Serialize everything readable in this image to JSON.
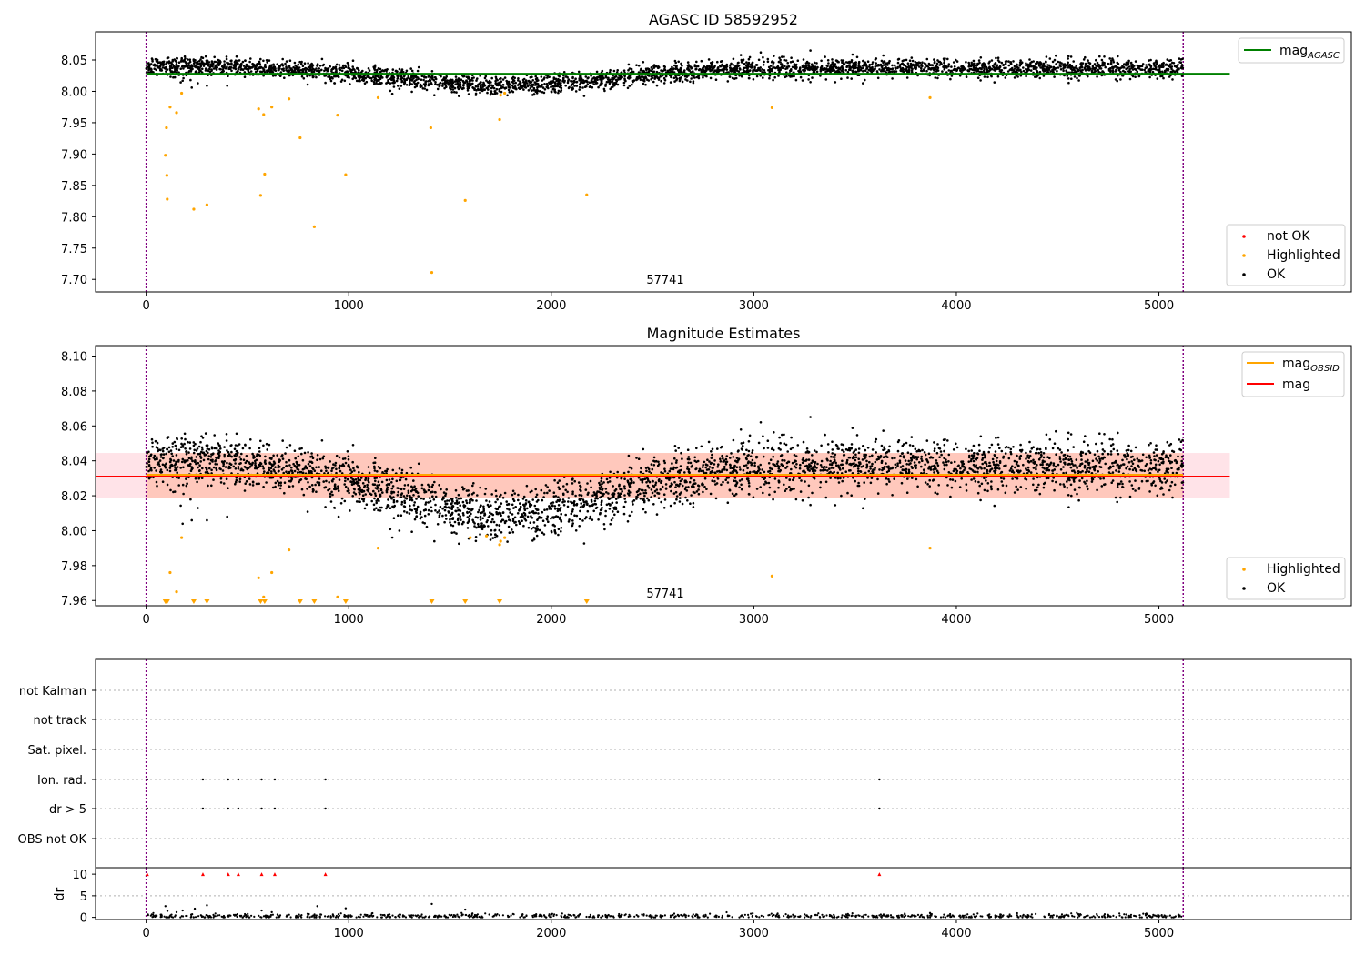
{
  "colors": {
    "ok": "#000000",
    "highlighted": "#ffa500",
    "not_ok": "#ff0000",
    "agasc_line": "#008000",
    "obsid_line": "#ffa500",
    "mag_line": "#ff0000",
    "band_pink": "#ffc0cb",
    "band_orange": "#ffa07a",
    "vline": "#800080",
    "grid": "#b0b0b0"
  },
  "chart_data": [
    {
      "id": "top",
      "type": "scatter",
      "title": "AGASC ID 58592952",
      "annotation": "57741",
      "xlim": [
        -250,
        5950
      ],
      "ylim": [
        7.68,
        8.095
      ],
      "x_ticks": [
        0,
        1000,
        2000,
        3000,
        4000,
        5000
      ],
      "y_ticks": [
        7.7,
        7.75,
        7.8,
        7.85,
        7.9,
        7.95,
        8.0,
        8.05
      ],
      "y_tick_labels": [
        "7.70",
        "7.75",
        "7.80",
        "7.85",
        "7.90",
        "7.95",
        "8.00",
        "8.05"
      ],
      "vlines": [
        0,
        5120
      ],
      "hlines": [
        {
          "series": "mag_agasc",
          "y": 8.028,
          "x": [
            0,
            5350
          ]
        }
      ],
      "legends": [
        {
          "position": "top-right",
          "entries": [
            {
              "label": "mag",
              "subscript": "AGASC",
              "marker": "line",
              "color_key": "agasc_line"
            }
          ]
        },
        {
          "position": "bottom-right",
          "entries": [
            {
              "label": "not OK",
              "marker": "dot",
              "color_key": "not_ok"
            },
            {
              "label": "Highlighted",
              "marker": "dot",
              "color_key": "highlighted"
            },
            {
              "label": "OK",
              "marker": "dot",
              "color_key": "ok"
            }
          ]
        }
      ],
      "highlighted": [
        [
          95,
          7.898
        ],
        [
          100,
          7.942
        ],
        [
          102,
          7.866
        ],
        [
          104,
          7.828
        ],
        [
          118,
          7.975
        ],
        [
          150,
          7.966
        ],
        [
          175,
          7.997
        ],
        [
          235,
          7.812
        ],
        [
          300,
          7.819
        ],
        [
          555,
          7.972
        ],
        [
          565,
          7.834
        ],
        [
          580,
          7.963
        ],
        [
          585,
          7.868
        ],
        [
          620,
          7.975
        ],
        [
          705,
          7.988
        ],
        [
          760,
          7.926
        ],
        [
          830,
          7.784
        ],
        [
          945,
          7.962
        ],
        [
          985,
          7.867
        ],
        [
          1145,
          7.99
        ],
        [
          1405,
          7.942
        ],
        [
          1410,
          7.711
        ],
        [
          1575,
          7.826
        ],
        [
          1745,
          7.955
        ],
        [
          1750,
          7.994
        ],
        [
          1770,
          7.997
        ],
        [
          2175,
          7.835
        ],
        [
          3090,
          7.974
        ],
        [
          3870,
          7.99
        ]
      ],
      "ok_outliers": [
        [
          180,
          8.017
        ],
        [
          225,
          8.006
        ],
        [
          255,
          8.013
        ],
        [
          300,
          8.009
        ],
        [
          400,
          8.009
        ],
        [
          1250,
          8.004
        ]
      ],
      "ok_trend": [
        [
          0,
          8.04
        ],
        [
          500,
          8.038
        ],
        [
          900,
          8.033
        ],
        [
          1200,
          8.022
        ],
        [
          1500,
          8.011
        ],
        [
          1700,
          8.008
        ],
        [
          1900,
          8.01
        ],
        [
          2200,
          8.016
        ],
        [
          2500,
          8.028
        ],
        [
          2800,
          8.033
        ],
        [
          3100,
          8.036
        ],
        [
          3600,
          8.038
        ],
        [
          4200,
          8.037
        ],
        [
          5120,
          8.036
        ]
      ],
      "ok_count": 3400,
      "ok_spread": 0.0075
    },
    {
      "id": "middle",
      "type": "scatter",
      "title": "Magnitude Estimates",
      "annotation": "57741",
      "xlim": [
        -250,
        5950
      ],
      "ylim": [
        7.957,
        8.106
      ],
      "x_ticks": [
        0,
        1000,
        2000,
        3000,
        4000,
        5000
      ],
      "y_ticks": [
        7.96,
        7.98,
        8.0,
        8.02,
        8.04,
        8.06,
        8.08,
        8.1
      ],
      "y_tick_labels": [
        "7.96",
        "7.98",
        "8.00",
        "8.02",
        "8.04",
        "8.06",
        "8.08",
        "8.10"
      ],
      "vlines": [
        0,
        5120
      ],
      "bands": [
        {
          "color_key": "band_pink",
          "y": [
            8.0185,
            8.0445
          ],
          "x": [
            -250,
            5350
          ],
          "opacity": 0.45
        },
        {
          "color_key": "band_orange",
          "y": [
            8.0185,
            8.0445
          ],
          "x": [
            0,
            5120
          ],
          "opacity": 0.4
        }
      ],
      "hlines": [
        {
          "series": "mag_obsid",
          "y": 8.032,
          "x": [
            0,
            5120
          ],
          "color_key": "obsid_line"
        },
        {
          "series": "mag",
          "y": 8.031,
          "x": [
            -250,
            5350
          ],
          "color_key": "mag_line"
        }
      ],
      "legends": [
        {
          "position": "top-right",
          "entries": [
            {
              "label": "mag",
              "subscript": "OBSID",
              "marker": "line",
              "color_key": "obsid_line"
            },
            {
              "label": "mag",
              "marker": "line",
              "color_key": "mag_line"
            }
          ]
        },
        {
          "position": "bottom-right",
          "entries": [
            {
              "label": "Highlighted",
              "marker": "dot",
              "color_key": "highlighted"
            },
            {
              "label": "OK",
              "marker": "dot",
              "color_key": "ok"
            }
          ]
        }
      ],
      "highlighted": [
        [
          118,
          7.976
        ],
        [
          150,
          7.965
        ],
        [
          175,
          7.996
        ],
        [
          555,
          7.973
        ],
        [
          580,
          7.962
        ],
        [
          620,
          7.976
        ],
        [
          705,
          7.989
        ],
        [
          945,
          7.962
        ],
        [
          1145,
          7.99
        ],
        [
          1600,
          7.996
        ],
        [
          1680,
          7.997
        ],
        [
          1745,
          7.992
        ],
        [
          1750,
          7.994
        ],
        [
          1770,
          7.996
        ],
        [
          3090,
          7.974
        ],
        [
          3870,
          7.99
        ]
      ],
      "offscale": [
        95,
        100,
        104,
        235,
        300,
        565,
        585,
        760,
        830,
        985,
        1410,
        1575,
        1745,
        2175
      ],
      "ok_outliers": [
        [
          180,
          8.004
        ],
        [
          225,
          8.006
        ],
        [
          255,
          8.013
        ],
        [
          300,
          8.006
        ],
        [
          400,
          8.008
        ],
        [
          1250,
          8.0
        ],
        [
          950,
          8.008
        ]
      ],
      "ok_trend": [
        [
          0,
          8.04
        ],
        [
          500,
          8.038
        ],
        [
          900,
          8.033
        ],
        [
          1200,
          8.022
        ],
        [
          1500,
          8.011
        ],
        [
          1700,
          8.008
        ],
        [
          1900,
          8.01
        ],
        [
          2200,
          8.016
        ],
        [
          2500,
          8.028
        ],
        [
          2800,
          8.033
        ],
        [
          3100,
          8.036
        ],
        [
          3600,
          8.038
        ],
        [
          4200,
          8.037
        ],
        [
          5120,
          8.036
        ]
      ],
      "ok_count": 3400,
      "ok_spread": 0.0075
    },
    {
      "id": "flags",
      "type": "scatter",
      "xlim": [
        -250,
        5950
      ],
      "categories": [
        "not Kalman",
        "not track",
        "Sat. pixel.",
        "Ion. rad.",
        "dr > 5",
        "OBS not OK"
      ],
      "vlines": [
        0,
        5120
      ],
      "series": [
        {
          "name": "Ion. rad.",
          "x": [
            5,
            280,
            405,
            455,
            570,
            635,
            885,
            3620
          ]
        },
        {
          "name": "dr > 5",
          "x": [
            5,
            280,
            405,
            455,
            570,
            635,
            885,
            3620
          ]
        }
      ]
    },
    {
      "id": "dr",
      "type": "scatter",
      "ylabel": "dr",
      "xlim": [
        -250,
        5950
      ],
      "ylim": [
        -0.5,
        11.5
      ],
      "x_ticks": [
        0,
        1000,
        2000,
        3000,
        4000,
        5000
      ],
      "y_ticks": [
        0,
        5,
        10
      ],
      "y_tick_labels": [
        "0",
        "5",
        "10"
      ],
      "vlines": [
        0,
        5120
      ],
      "capped": {
        "y": 10,
        "x": [
          5,
          280,
          405,
          455,
          570,
          635,
          885,
          3620
        ]
      },
      "ok_outliers": [
        [
          95,
          2.6
        ],
        [
          105,
          1.5
        ],
        [
          150,
          1.2
        ],
        [
          180,
          1.6
        ],
        [
          240,
          2.0
        ],
        [
          300,
          2.8
        ],
        [
          570,
          1.6
        ],
        [
          620,
          1.2
        ],
        [
          845,
          2.6
        ],
        [
          985,
          2.1
        ],
        [
          1410,
          3.1
        ],
        [
          1575,
          1.8
        ],
        [
          3870,
          1.0
        ]
      ],
      "baseline": {
        "mean": 0.3,
        "spread": 0.25,
        "count": 900
      }
    }
  ]
}
